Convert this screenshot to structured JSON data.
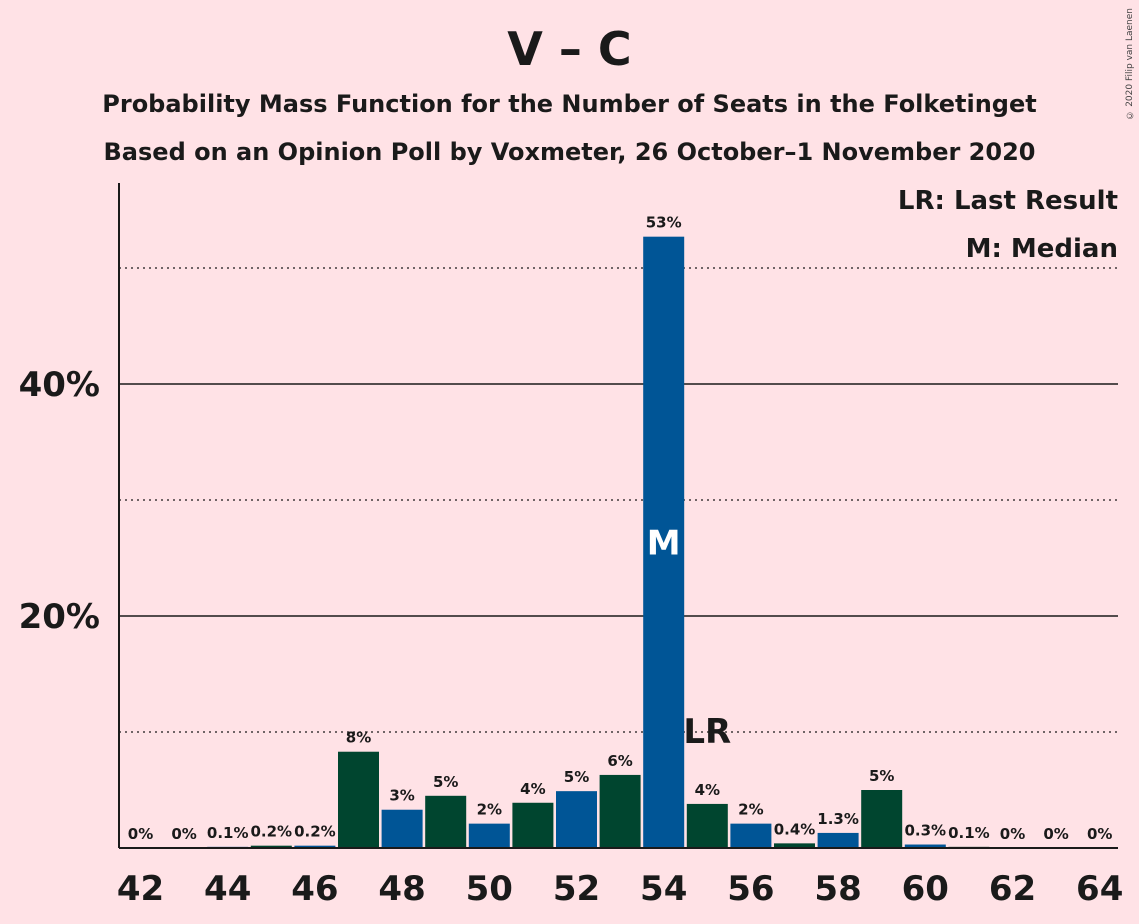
{
  "title": "V – C",
  "subtitle1": "Probability Mass Function for the Number of Seats in the Folketinget",
  "subtitle2": "Based on an Opinion Poll by Voxmeter, 26 October–1 November 2020",
  "copyright": "© 2020 Filip van Laenen",
  "legend": {
    "lr": "LR: Last Result",
    "m": "M: Median"
  },
  "colors": {
    "background": "#FFE2E6",
    "blue": "#005596",
    "green": "#00452F"
  },
  "chart_data": {
    "type": "bar",
    "categories": [
      42,
      43,
      44,
      45,
      46,
      47,
      48,
      49,
      50,
      51,
      52,
      53,
      54,
      55,
      56,
      57,
      58,
      59,
      60,
      61,
      62,
      63,
      64
    ],
    "values": [
      0,
      0,
      0.1,
      0.2,
      0.2,
      8.3,
      3.3,
      4.5,
      2.1,
      3.9,
      4.9,
      6.3,
      52.7,
      3.8,
      2.1,
      0.4,
      1.3,
      5.0,
      0.3,
      0.1,
      0,
      0,
      0
    ],
    "labels": [
      "0%",
      "0%",
      "0.1%",
      "0.2%",
      "0.2%",
      "8%",
      "3%",
      "5%",
      "2%",
      "4%",
      "5%",
      "6%",
      "53%",
      "4%",
      "2%",
      "0.4%",
      "1.3%",
      "5%",
      "0.3%",
      "0.1%",
      "0%",
      "0%",
      "0%"
    ],
    "bar_colors": [
      "#005596",
      "#00452F",
      "#005596",
      "#00452F",
      "#005596",
      "#00452F",
      "#005596",
      "#00452F",
      "#005596",
      "#00452F",
      "#005596",
      "#00452F",
      "#005596",
      "#00452F",
      "#005596",
      "#00452F",
      "#005596",
      "#00452F",
      "#005596",
      "#00452F",
      "#005596",
      "#00452F",
      "#005596"
    ],
    "xticks": [
      42,
      44,
      46,
      48,
      50,
      52,
      54,
      56,
      58,
      60,
      62,
      64
    ],
    "yticks": [
      {
        "value": 20,
        "label": "20%"
      },
      {
        "value": 40,
        "label": "40%"
      }
    ],
    "ygrid_dotted": [
      10,
      30,
      50
    ],
    "ylim": [
      0,
      57
    ],
    "median": {
      "category": 54,
      "label": "M"
    },
    "last_result": {
      "category": 55,
      "label": "LR",
      "y": 10
    },
    "grid": true,
    "legend_position": "top-right"
  }
}
